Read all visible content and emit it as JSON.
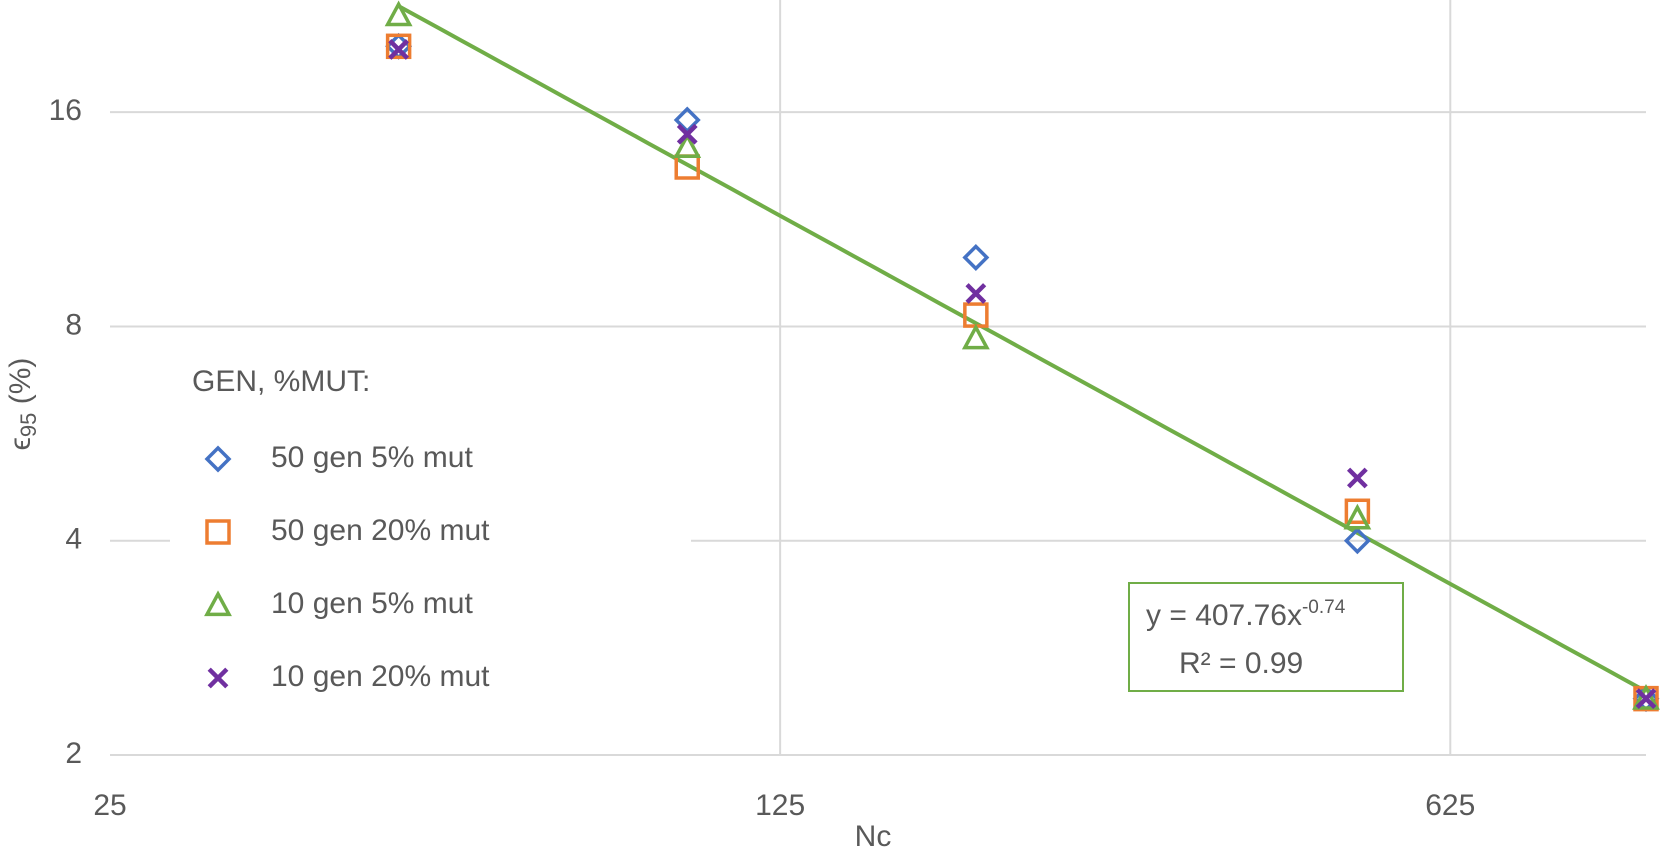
{
  "chart_data": {
    "type": "scatter",
    "x_label": "Nc",
    "y_label_parts": [
      "ϵ",
      "95",
      " (%)"
    ],
    "x": [
      50,
      100,
      200,
      500,
      1000
    ],
    "series": [
      {
        "name": "50 gen 5% mut",
        "color": "#4472c4",
        "marker": "diamond",
        "values": [
          19.8,
          15.6,
          10.0,
          4.0,
          2.4
        ]
      },
      {
        "name": "50 gen 20% mut",
        "color": "#ed7d31",
        "marker": "square",
        "values": [
          19.8,
          13.4,
          8.3,
          4.4,
          2.4
        ]
      },
      {
        "name": "10 gen 5% mut",
        "color": "#70ad47",
        "marker": "triangle",
        "values": [
          21.9,
          14.3,
          7.7,
          4.3,
          2.4
        ]
      },
      {
        "name": "10 gen 20% mut",
        "color": "#7030a0",
        "marker": "x",
        "values": [
          19.6,
          14.9,
          8.9,
          4.9,
          2.4
        ]
      }
    ],
    "xlim": [
      25,
      1000
    ],
    "xticks": [
      25,
      125,
      625
    ],
    "xscale": "log",
    "ylim": [
      2,
      23
    ],
    "yticks": [
      2,
      4,
      8,
      16
    ],
    "yscale": "log",
    "grid": true,
    "legend_title": "GEN, %MUT:",
    "legend": "left",
    "trendline": {
      "a": 407.76,
      "b": -0.74,
      "color": "#70ad47",
      "equation_text": "y = 407.76x",
      "exponent_text": "-0.74",
      "r2_text": "R² = 0.99"
    }
  }
}
